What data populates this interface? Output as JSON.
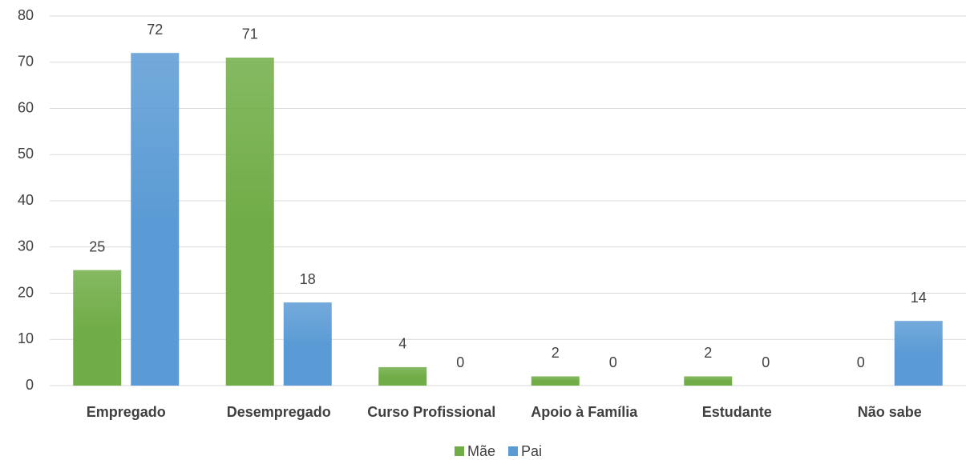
{
  "chart_data": {
    "type": "bar",
    "categories": [
      "Empregado",
      "Desempregado",
      "Curso Profissional",
      "Apoio à Família",
      "Estudante",
      "Não sabe"
    ],
    "series": [
      {
        "name": "Mãe",
        "color": "#70ad47",
        "values": [
          25,
          71,
          4,
          2,
          2,
          0
        ]
      },
      {
        "name": "Pai",
        "color": "#5b9bd5",
        "values": [
          72,
          18,
          0,
          0,
          0,
          14
        ]
      }
    ],
    "ylim": [
      0,
      80
    ],
    "yticks": [
      0,
      10,
      20,
      30,
      40,
      50,
      60,
      70,
      80
    ],
    "grid": true,
    "legend": "bottom"
  }
}
